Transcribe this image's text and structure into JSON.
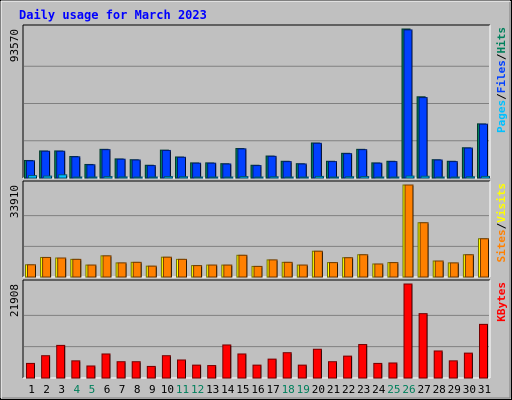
{
  "colors": {
    "background": "#c0c0c0",
    "title": "#0000ff",
    "hits": "#00805c",
    "files": "#0040ff",
    "pages": "#00c0ff",
    "visits": "#ffff00",
    "sites": "#ff8000",
    "kbytes": "#ff0000",
    "gridline": "#808080",
    "weekend_day": "#00805c",
    "weekday_day": "#000000"
  },
  "chart_data": {
    "type": "bar",
    "title": "Daily usage for March 2023",
    "categories": [
      "1",
      "2",
      "3",
      "4",
      "5",
      "6",
      "7",
      "8",
      "9",
      "10",
      "11",
      "12",
      "13",
      "14",
      "15",
      "16",
      "17",
      "18",
      "19",
      "20",
      "21",
      "22",
      "23",
      "24",
      "25",
      "26",
      "27",
      "28",
      "29",
      "30",
      "31"
    ],
    "weekend_days": [
      "4",
      "5",
      "11",
      "12",
      "18",
      "19",
      "25",
      "26"
    ],
    "panels": [
      {
        "name": "top",
        "max_label": "93570",
        "ymax": 93570,
        "legend": [
          {
            "text": "Pages",
            "color": "#00c0ff"
          },
          {
            "text": "/",
            "color": "#000000"
          },
          {
            "text": "Files",
            "color": "#0040ff"
          },
          {
            "text": "/",
            "color": "#000000"
          },
          {
            "text": "Hits",
            "color": "#00805c"
          }
        ],
        "series": [
          {
            "name": "Hits",
            "color": "#00805c",
            "values": [
              11000,
              17000,
              17000,
              13500,
              8500,
              18000,
              12000,
              11500,
              8000,
              17500,
              13200,
              9500,
              9500,
              9000,
              18500,
              8000,
              13800,
              10500,
              9000,
              22000,
              10500,
              15500,
              18000,
              9500,
              10500,
              93570,
              51000,
              11500,
              10500,
              19000,
              34000
            ]
          },
          {
            "name": "Files",
            "color": "#0040ff",
            "values": [
              10800,
              16800,
              16800,
              13300,
              8300,
              17800,
              11800,
              11300,
              7800,
              17300,
              13000,
              9300,
              9300,
              8800,
              18300,
              7800,
              13600,
              10300,
              8800,
              21800,
              10300,
              15300,
              17800,
              9300,
              10300,
              93000,
              50500,
              11300,
              10300,
              18800,
              33800
            ]
          },
          {
            "name": "Pages",
            "color": "#00c0ff",
            "values": [
              1500,
              1200,
              2000,
              600,
              500,
              900,
              700,
              600,
              400,
              900,
              800,
              600,
              600,
              500,
              900,
              400,
              800,
              600,
              500,
              1000,
              600,
              800,
              900,
              500,
              500,
              1200,
              1100,
              600,
              500,
              800,
              1000
            ]
          }
        ]
      },
      {
        "name": "middle",
        "max_label": "33910",
        "ymax": 33910,
        "legend": [
          {
            "text": "Sites",
            "color": "#ff8000"
          },
          {
            "text": "/",
            "color": "#000000"
          },
          {
            "text": "Visits",
            "color": "#ffff00"
          }
        ],
        "series": [
          {
            "name": "Visits",
            "color": "#ffff00",
            "values": [
              4500,
              7200,
              7000,
              6500,
              4400,
              7800,
              5200,
              5400,
              4000,
              7300,
              6500,
              4200,
              4400,
              4400,
              8000,
              3900,
              6300,
              5400,
              4400,
              9500,
              5300,
              7100,
              8200,
              4800,
              5300,
              33910,
              20000,
              5900,
              5200,
              8200,
              14100
            ]
          },
          {
            "name": "Sites",
            "color": "#ff8000",
            "values": [
              4500,
              7200,
              7000,
              6500,
              4400,
              7800,
              5200,
              5400,
              4000,
              7300,
              6500,
              4200,
              4400,
              4400,
              8000,
              3900,
              6300,
              5400,
              4400,
              9500,
              5300,
              7100,
              8200,
              4800,
              5300,
              33910,
              20000,
              5900,
              5200,
              8200,
              14100
            ]
          }
        ]
      },
      {
        "name": "bottom",
        "max_label": "21908",
        "ymax": 21908,
        "legend": [
          {
            "text": "KBytes",
            "color": "#ff0000"
          }
        ],
        "series": [
          {
            "name": "KBytes",
            "color": "#ff0000",
            "values": [
              3400,
              5200,
              7600,
              4000,
              2800,
              5600,
              3800,
              3800,
              2700,
              5200,
              4200,
              3000,
              2900,
              7700,
              5600,
              3000,
              4400,
              5900,
              3000,
              6700,
              3800,
              5100,
              7800,
              3400,
              3500,
              21908,
              15000,
              6300,
              4000,
              5800,
              12500
            ]
          }
        ]
      }
    ]
  }
}
